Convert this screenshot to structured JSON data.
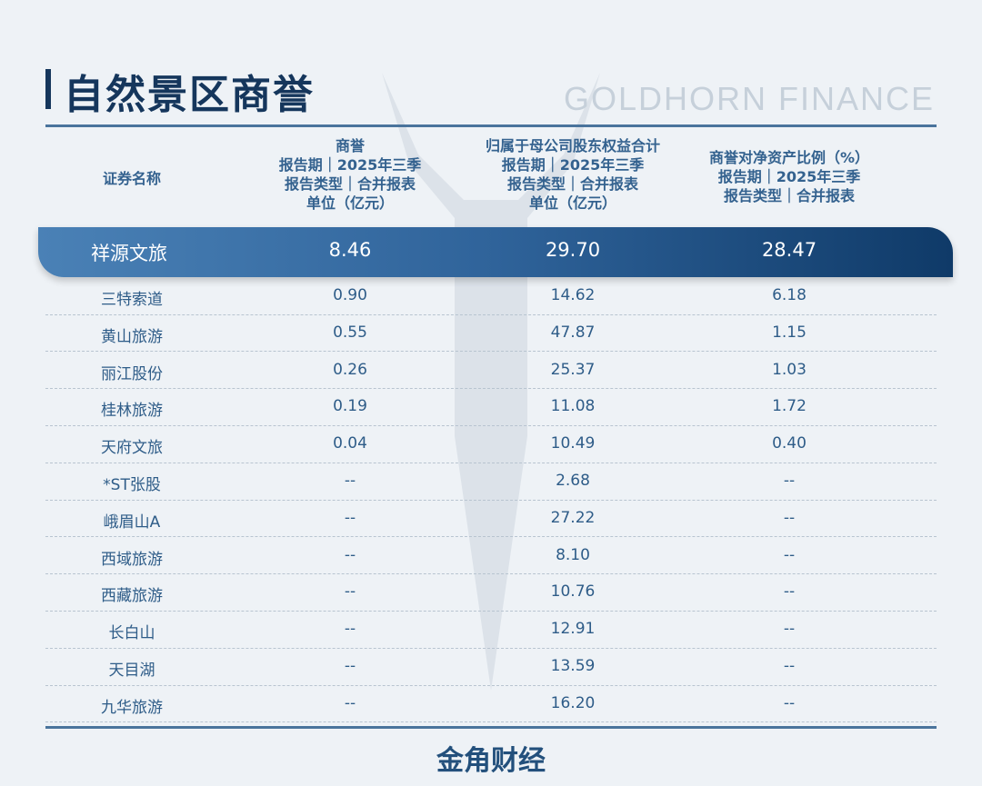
{
  "title": "自然景区商誉",
  "brand": "GOLDHORN FINANCE",
  "footer_logo": "金角财经",
  "colors": {
    "title": "#15365c",
    "text": "#2d5a86",
    "highlight_start": "#4a81b6",
    "highlight_end": "#0f3a68"
  },
  "columns": [
    {
      "lines": [
        "证券名称"
      ]
    },
    {
      "lines": [
        "商誉",
        "报告期｜2025年三季",
        "报告类型｜合并报表",
        "单位（亿元）"
      ]
    },
    {
      "lines": [
        "归属于母公司股东权益合计",
        "报告期｜2025年三季",
        "报告类型｜合并报表",
        "单位（亿元）"
      ]
    },
    {
      "lines": [
        "商誉对净资产比例（%）",
        "报告期｜2025年三季",
        "报告类型｜合并报表"
      ]
    }
  ],
  "highlight_row": [
    "祥源文旅",
    "8.46",
    "29.70",
    "28.47"
  ],
  "rows": [
    [
      "三特索道",
      "0.90",
      "14.62",
      "6.18"
    ],
    [
      "黄山旅游",
      "0.55",
      "47.87",
      "1.15"
    ],
    [
      "丽江股份",
      "0.26",
      "25.37",
      "1.03"
    ],
    [
      "桂林旅游",
      "0.19",
      "11.08",
      "1.72"
    ],
    [
      "天府文旅",
      "0.04",
      "10.49",
      "0.40"
    ],
    [
      "*ST张股",
      "--",
      "2.68",
      "--"
    ],
    [
      "峨眉山A",
      "--",
      "27.22",
      "--"
    ],
    [
      "西域旅游",
      "--",
      "8.10",
      "--"
    ],
    [
      "西藏旅游",
      "--",
      "10.76",
      "--"
    ],
    [
      "长白山",
      "--",
      "12.91",
      "--"
    ],
    [
      "天目湖",
      "--",
      "13.59",
      "--"
    ],
    [
      "九华旅游",
      "--",
      "16.20",
      "--"
    ]
  ]
}
